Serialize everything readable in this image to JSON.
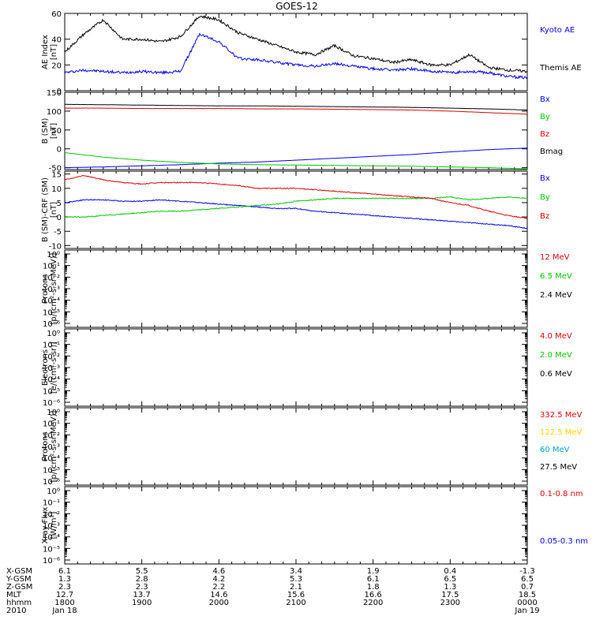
{
  "title": "GOES-12",
  "colors": {
    "black": "#000000",
    "blue": "#0000ff",
    "green": "#00c800",
    "red": "#e00000",
    "yellow": "#ffd400",
    "cyan": "#00a0e0"
  },
  "chart_data": [
    {
      "type": "line",
      "panel": "ae-index",
      "ylabel": [
        "AE Index",
        "[nT]"
      ],
      "ylim": [
        0,
        60
      ],
      "yticks": [
        0,
        20,
        40,
        60
      ],
      "x": [
        0,
        0.25,
        0.5,
        0.75,
        1,
        1.25,
        1.5,
        1.75,
        2,
        2.25,
        2.5,
        2.75,
        3,
        3.25,
        3.5,
        3.75,
        4,
        4.25,
        4.5,
        4.75,
        5,
        5.25,
        5.5,
        5.75,
        6
      ],
      "series": [
        {
          "name": "Kyoto AE",
          "color": "#0000ff",
          "values": [
            14,
            16,
            15,
            14,
            15,
            14,
            15,
            44,
            38,
            25,
            24,
            22,
            20,
            19,
            21,
            19,
            17,
            16,
            17,
            15,
            14,
            15,
            14,
            11,
            10
          ]
        },
        {
          "name": "Themis AE",
          "color": "#000000",
          "values": [
            30,
            44,
            55,
            40,
            40,
            38,
            42,
            58,
            55,
            45,
            40,
            35,
            30,
            28,
            35,
            27,
            25,
            22,
            24,
            20,
            20,
            28,
            18,
            16,
            15
          ]
        }
      ]
    },
    {
      "type": "line",
      "panel": "b-sm",
      "ylabel": [
        "B (SM)",
        "[nT]"
      ],
      "ylim": [
        -55,
        150
      ],
      "yticks": [
        -50,
        0,
        50,
        100,
        150
      ],
      "x": [
        0,
        0.5,
        1,
        1.5,
        2,
        2.5,
        3,
        3.5,
        4,
        4.5,
        5,
        5.5,
        6
      ],
      "series": [
        {
          "name": "Bx",
          "color": "#0000ff",
          "values": [
            -50,
            -48,
            -45,
            -42,
            -38,
            -35,
            -30,
            -25,
            -20,
            -15,
            -8,
            -2,
            2
          ]
        },
        {
          "name": "By",
          "color": "#00c800",
          "values": [
            -10,
            -22,
            -30,
            -36,
            -40,
            -42,
            -43,
            -44,
            -45,
            -46,
            -48,
            -50,
            -53
          ]
        },
        {
          "name": "Bz",
          "color": "#e00000",
          "values": [
            108,
            108,
            107,
            107,
            107,
            106,
            106,
            105,
            104,
            103,
            100,
            96,
            92
          ]
        },
        {
          "name": "Bmag",
          "color": "#000000",
          "values": [
            118,
            117,
            116,
            115,
            114,
            114,
            113,
            112,
            111,
            110,
            108,
            106,
            103
          ]
        }
      ]
    },
    {
      "type": "line",
      "panel": "b-minus-crf",
      "ylabel": [
        "B (SM)-CRF (SM)",
        "[nT]"
      ],
      "ylim": [
        -11,
        16
      ],
      "yticks": [
        -10,
        -5,
        0,
        5,
        10,
        15
      ],
      "x": [
        0,
        0.25,
        0.5,
        0.75,
        1,
        1.25,
        1.5,
        1.75,
        2,
        2.25,
        2.5,
        2.75,
        3,
        3.25,
        3.5,
        3.75,
        4,
        4.25,
        4.5,
        4.75,
        5,
        5.25,
        5.5,
        5.75,
        6
      ],
      "series": [
        {
          "name": "Bx",
          "color": "#0000ff",
          "values": [
            5,
            6,
            6,
            5.5,
            5.5,
            6,
            5.5,
            5,
            4.5,
            4,
            3.5,
            3,
            3,
            2,
            1.5,
            1,
            0.5,
            0,
            -0.5,
            -1,
            -1.5,
            -2,
            -2.5,
            -3,
            -4
          ]
        },
        {
          "name": "By",
          "color": "#00c800",
          "values": [
            0,
            0,
            0.5,
            1,
            1.5,
            2,
            2,
            2.5,
            3,
            3.5,
            4,
            4.5,
            5.5,
            6,
            6.5,
            6.5,
            6.5,
            6.5,
            6.5,
            6.5,
            7,
            6,
            6.5,
            7,
            6.5
          ]
        },
        {
          "name": "Bz",
          "color": "#e00000",
          "values": [
            13,
            14.5,
            13,
            12,
            11.5,
            12,
            12,
            12,
            11.5,
            11,
            10,
            10,
            10,
            9.5,
            9,
            8.5,
            8,
            7.5,
            7,
            6.5,
            5,
            4,
            2,
            0.5,
            -0.5
          ]
        }
      ]
    },
    {
      "type": "line",
      "panel": "protons-1",
      "ylabel": [
        "Protons",
        "[p/(cm²-s-sr-MeV)]"
      ],
      "log": true,
      "ylim": [
        1e-06,
        1
      ],
      "ytick_labels": [
        "10⁰",
        "10⁻¹",
        "10⁻²",
        "10⁻³",
        "10⁻⁴",
        "10⁻⁵",
        "10⁻⁶"
      ],
      "series": [
        {
          "name": "12 MeV",
          "color": "#e00000",
          "values": []
        },
        {
          "name": "6.5 MeV",
          "color": "#00c800",
          "values": []
        },
        {
          "name": "2.4 MeV",
          "color": "#000000",
          "values": []
        }
      ]
    },
    {
      "type": "line",
      "panel": "electrons",
      "ylabel": [
        "Electrons",
        "[e/(cm²-s-sr)]"
      ],
      "log": true,
      "ylim": [
        1e-06,
        1
      ],
      "ytick_labels": [
        "10⁰",
        "10⁻¹",
        "10⁻²",
        "10⁻³",
        "10⁻⁴",
        "10⁻⁵",
        "10⁻⁶"
      ],
      "series": [
        {
          "name": "4.0 MeV",
          "color": "#e00000",
          "values": []
        },
        {
          "name": "2.0 MeV",
          "color": "#00c800",
          "values": []
        },
        {
          "name": "0.6 MeV",
          "color": "#000000",
          "values": []
        }
      ]
    },
    {
      "type": "line",
      "panel": "protons-2",
      "ylabel": [
        "Protons",
        "[p/(cm²-s-sr-MeV)]"
      ],
      "log": true,
      "ylim": [
        1e-06,
        1
      ],
      "ytick_labels": [
        "10⁰",
        "10⁻¹",
        "10⁻²",
        "10⁻³",
        "10⁻⁴",
        "10⁻⁵",
        "10⁻⁶"
      ],
      "series": [
        {
          "name": "332.5 MeV",
          "color": "#e00000",
          "values": []
        },
        {
          "name": "122.5 MeV",
          "color": "#ffd400",
          "values": []
        },
        {
          "name": "60 MeV",
          "color": "#00a0e0",
          "values": []
        },
        {
          "name": "27.5 MeV",
          "color": "#000000",
          "values": []
        }
      ]
    },
    {
      "type": "line",
      "panel": "xray-flux",
      "ylabel": [
        "Xray Flux",
        "[W/m²]"
      ],
      "log": true,
      "ylim": [
        1e-06,
        1
      ],
      "ytick_labels": [
        "10⁰",
        "10⁻¹",
        "10⁻²",
        "10⁻³",
        "10⁻⁴",
        "10⁻⁵",
        "10⁻⁶"
      ],
      "series": [
        {
          "name": "0.1-0.8 nm",
          "color": "#e00000",
          "values": []
        },
        {
          "name": "0.05-0.3 nm",
          "color": "#0000ff",
          "values": []
        }
      ]
    }
  ],
  "footer": {
    "rows": [
      {
        "label": "X-GSM",
        "values": [
          "6.1",
          "5.5",
          "4.6",
          "3.4",
          "1.9",
          "0.4",
          "-1.3"
        ]
      },
      {
        "label": "Y-GSM",
        "values": [
          "1.3",
          "2.8",
          "4.2",
          "5.3",
          "6.1",
          "6.5",
          "6.5"
        ]
      },
      {
        "label": "Z-GSM",
        "values": [
          "2.3",
          "2.3",
          "2.2",
          "2.1",
          "1.8",
          "1.3",
          "0.7"
        ]
      },
      {
        "label": "MLT",
        "values": [
          "12.7",
          "13.7",
          "14.6",
          "15.6",
          "16.6",
          "17.5",
          "18.5"
        ]
      },
      {
        "label": "hhmm",
        "values": [
          "1800",
          "1900",
          "2000",
          "2100",
          "2200",
          "2300",
          "0000"
        ]
      },
      {
        "label": "2010",
        "values": [
          "Jan 18",
          "",
          "",
          "",
          "",
          "",
          "Jan 19"
        ]
      }
    ]
  }
}
